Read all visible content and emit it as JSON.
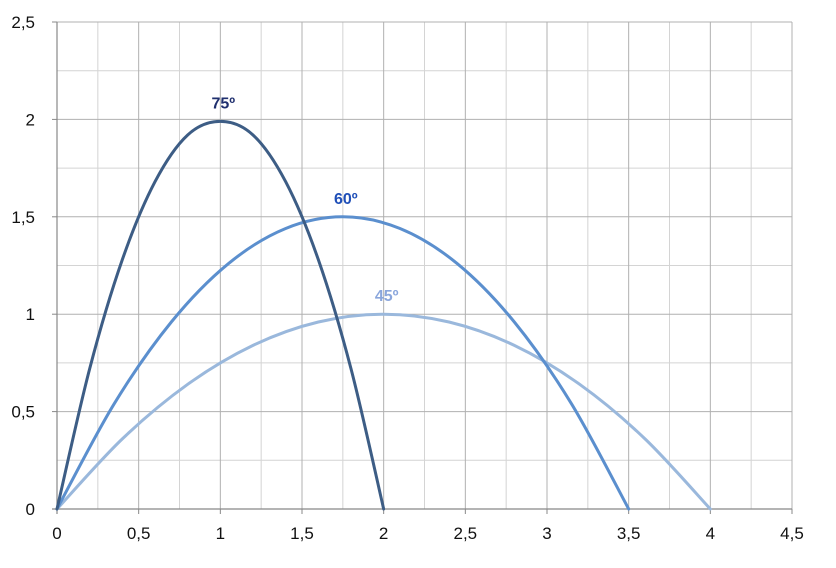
{
  "chart_data": {
    "type": "line",
    "title": "",
    "xlabel": "",
    "ylabel": "",
    "xlim": [
      0,
      4.5
    ],
    "ylim": [
      0,
      2.5
    ],
    "x_ticks": [
      "0",
      "0,5",
      "1",
      "1,5",
      "2",
      "2,5",
      "3",
      "3,5",
      "4",
      "4,5"
    ],
    "y_ticks": [
      "0",
      "0,5",
      "1",
      "1,5",
      "2",
      "2,5"
    ],
    "grid": true,
    "series": [
      {
        "name": "75º",
        "color": "#3d5d85",
        "label_color": "#1f2f6e",
        "label_at": [
          1.0,
          1.99
        ],
        "points": [
          [
            0,
            0
          ],
          [
            0.2,
            0.72
          ],
          [
            0.4,
            1.28
          ],
          [
            0.6,
            1.68
          ],
          [
            0.8,
            1.92
          ],
          [
            1.0,
            1.99
          ],
          [
            1.2,
            1.92
          ],
          [
            1.4,
            1.68
          ],
          [
            1.6,
            1.28
          ],
          [
            1.8,
            0.72
          ],
          [
            2.0,
            0
          ]
        ]
      },
      {
        "name": "60º",
        "color": "#5b8fce",
        "label_color": "#1f4fb8",
        "label_at": [
          1.75,
          1.5
        ],
        "points": [
          [
            0,
            0
          ],
          [
            0.35,
            0.54
          ],
          [
            0.7,
            0.96
          ],
          [
            1.05,
            1.26
          ],
          [
            1.4,
            1.44
          ],
          [
            1.75,
            1.5
          ],
          [
            2.1,
            1.44
          ],
          [
            2.45,
            1.26
          ],
          [
            2.8,
            0.96
          ],
          [
            3.15,
            0.54
          ],
          [
            3.5,
            0
          ]
        ]
      },
      {
        "name": "45º",
        "color": "#9ab8dc",
        "label_color": "#8aa6dc",
        "label_at": [
          2.0,
          1.0
        ],
        "points": [
          [
            0,
            0
          ],
          [
            0.4,
            0.36
          ],
          [
            0.8,
            0.64
          ],
          [
            1.2,
            0.84
          ],
          [
            1.6,
            0.96
          ],
          [
            2.0,
            1.0
          ],
          [
            2.4,
            0.96
          ],
          [
            2.8,
            0.84
          ],
          [
            3.2,
            0.64
          ],
          [
            3.6,
            0.36
          ],
          [
            4.0,
            0
          ]
        ]
      }
    ]
  }
}
